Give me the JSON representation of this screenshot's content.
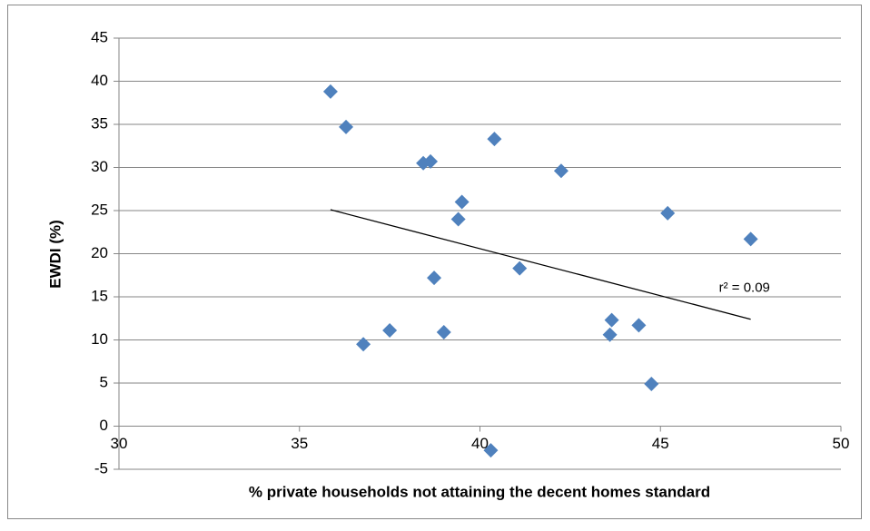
{
  "chart_data": {
    "type": "scatter",
    "x_label": "% private households not attaining the decent homes standard",
    "y_label": "EWDI (%)",
    "xlim": [
      30,
      50
    ],
    "xticks": [
      30,
      35,
      40,
      45,
      50
    ],
    "ylim": [
      -5,
      45
    ],
    "yticks": [
      -5,
      0,
      5,
      10,
      15,
      20,
      25,
      30,
      35,
      40,
      45
    ],
    "grid": true,
    "color": "#4f81bd",
    "x": [
      35.86,
      36.29,
      36.77,
      37.5,
      38.43,
      38.63,
      38.73,
      39.0,
      39.4,
      39.5,
      40.3,
      40.4,
      41.1,
      42.25,
      43.6,
      43.65,
      44.4,
      44.75,
      45.2,
      47.5
    ],
    "values": [
      38.8,
      34.7,
      9.5,
      11.1,
      30.5,
      30.7,
      17.2,
      10.9,
      24.0,
      26.0,
      -2.8,
      33.3,
      18.3,
      29.6,
      10.6,
      12.3,
      11.7,
      4.9,
      24.7,
      21.7
    ],
    "trendline": {
      "x": [
        35.86,
        47.5
      ],
      "y": [
        25.1,
        12.4
      ],
      "label": "r² = 0.09"
    }
  }
}
